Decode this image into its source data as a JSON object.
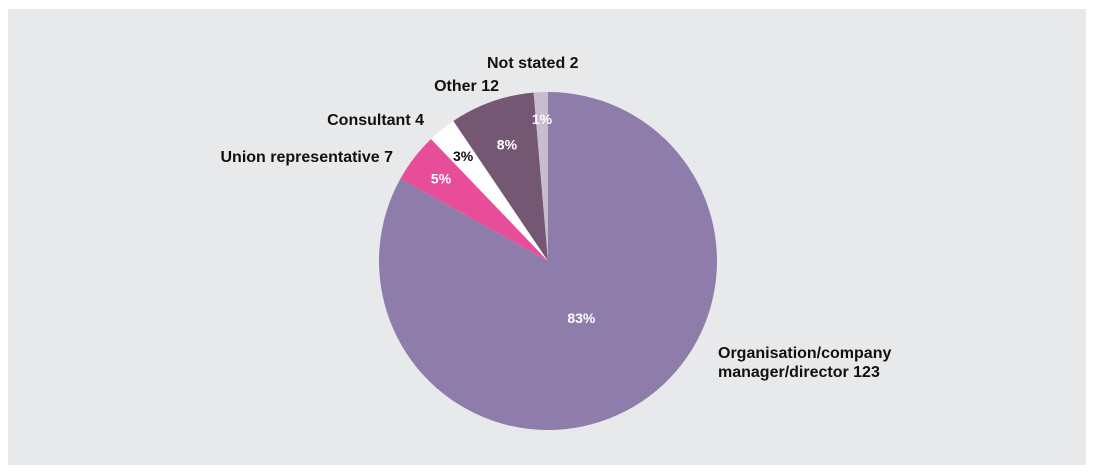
{
  "chart_data": {
    "type": "pie",
    "slices": [
      {
        "name": "Organisation/company manager/director",
        "value": 123,
        "percent": 83,
        "label_lines": [
          "Organisation/company",
          "manager/director 123"
        ],
        "pct_label": "83%",
        "color": "#8e7dab",
        "pct_color": "#ffffff"
      },
      {
        "name": "Union representative",
        "value": 7,
        "percent": 5,
        "label_lines": [
          "Union representative 7"
        ],
        "pct_label": "5%",
        "color": "#e84d9a",
        "pct_color": "#ffffff"
      },
      {
        "name": "Consultant",
        "value": 4,
        "percent": 3,
        "label_lines": [
          "Consultant 4"
        ],
        "pct_label": "3%",
        "color": "#ffffff",
        "pct_color": "#111111"
      },
      {
        "name": "Other",
        "value": 12,
        "percent": 8,
        "label_lines": [
          "Other 12"
        ],
        "pct_label": "8%",
        "color": "#745773",
        "pct_color": "#ffffff"
      },
      {
        "name": "Not stated",
        "value": 2,
        "percent": 1,
        "label_lines": [
          "Not stated 2"
        ],
        "pct_label": "1%",
        "color": "#c8bccf",
        "pct_color": "#ffffff"
      }
    ]
  }
}
